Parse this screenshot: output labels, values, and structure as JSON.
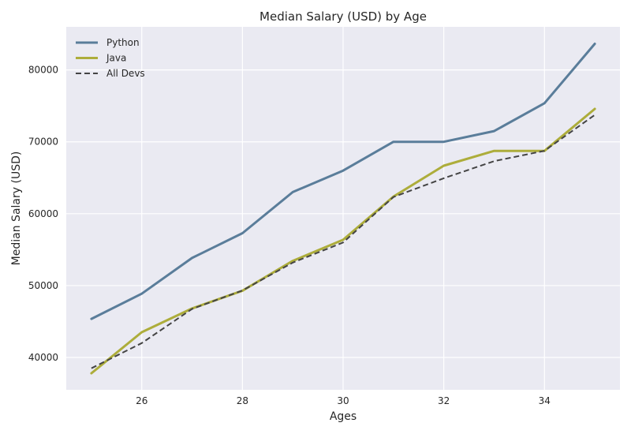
{
  "chart_data": {
    "type": "line",
    "title": "Median Salary (USD) by Age",
    "xlabel": "Ages",
    "ylabel": "Median Salary (USD)",
    "x": [
      25,
      26,
      27,
      28,
      29,
      30,
      31,
      32,
      33,
      34,
      35
    ],
    "xlim": [
      24.5,
      35.5
    ],
    "ylim": [
      35500,
      86000
    ],
    "xticks": [
      "26",
      "28",
      "30",
      "32",
      "34"
    ],
    "yticks": [
      "40000",
      "50000",
      "60000",
      "70000",
      "80000"
    ],
    "grid": true,
    "legend_position": "top-left",
    "background": "#eaeaf2",
    "series": [
      {
        "name": "Python",
        "color": "#5a7d9a",
        "style": "solid",
        "values": [
          45372,
          48876,
          53850,
          57287,
          63016,
          65998,
          70003,
          70000,
          71496,
          75370,
          83640
        ]
      },
      {
        "name": "Java",
        "color": "#adad3b",
        "style": "solid",
        "values": [
          37810,
          43515,
          46823,
          49293,
          53437,
          56373,
          62375,
          66674,
          68745,
          68746,
          74583
        ]
      },
      {
        "name": "All Devs",
        "color": "#444444",
        "style": "dashed",
        "values": [
          38496,
          42000,
          46752,
          49320,
          53200,
          56000,
          62316,
          64928,
          67317,
          68748,
          73752
        ]
      }
    ]
  }
}
